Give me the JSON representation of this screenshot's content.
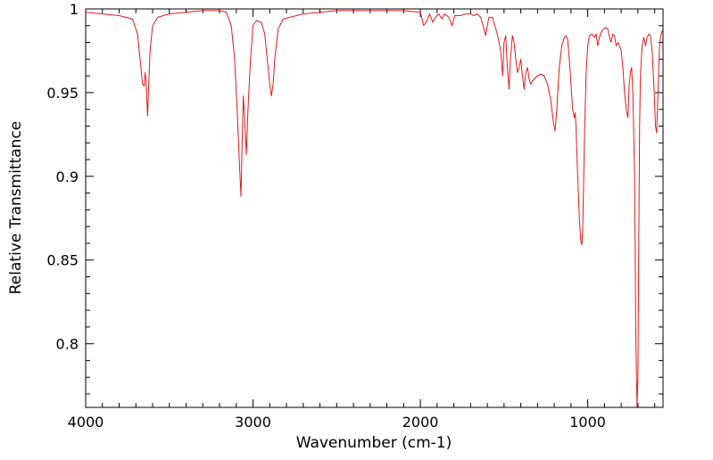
{
  "chart_data": {
    "type": "line",
    "title": "",
    "xlabel": "Wavenumber (cm-1)",
    "ylabel": "Relative Transmittance",
    "xlim": [
      4000,
      550
    ],
    "ylim": [
      0.762,
      1.0
    ],
    "x_reversed": true,
    "grid": false,
    "legend": "none",
    "xticks": [
      4000,
      3000,
      2000,
      1000
    ],
    "xtick_labels": [
      "4000",
      "3000",
      "2000",
      "1000"
    ],
    "yticks": [
      0.8,
      0.85,
      0.9,
      0.95,
      1.0
    ],
    "ytick_labels": [
      "0.8",
      "0.85",
      "0.9",
      "0.95",
      "1"
    ],
    "series": [
      {
        "color": "#e41a1c",
        "points": [
          [
            4000,
            0.998
          ],
          [
            3900,
            0.997
          ],
          [
            3800,
            0.996
          ],
          [
            3720,
            0.994
          ],
          [
            3690,
            0.985
          ],
          [
            3675,
            0.97
          ],
          [
            3660,
            0.955
          ],
          [
            3650,
            0.954
          ],
          [
            3645,
            0.962
          ],
          [
            3640,
            0.958
          ],
          [
            3630,
            0.936
          ],
          [
            3625,
            0.95
          ],
          [
            3615,
            0.975
          ],
          [
            3600,
            0.99
          ],
          [
            3570,
            0.995
          ],
          [
            3500,
            0.997
          ],
          [
            3400,
            0.998
          ],
          [
            3300,
            0.999
          ],
          [
            3200,
            0.999
          ],
          [
            3160,
            0.998
          ],
          [
            3130,
            0.99
          ],
          [
            3110,
            0.97
          ],
          [
            3095,
            0.94
          ],
          [
            3080,
            0.905
          ],
          [
            3072,
            0.888
          ],
          [
            3065,
            0.92
          ],
          [
            3058,
            0.948
          ],
          [
            3050,
            0.935
          ],
          [
            3040,
            0.913
          ],
          [
            3030,
            0.94
          ],
          [
            3015,
            0.97
          ],
          [
            3000,
            0.99
          ],
          [
            2980,
            0.993
          ],
          [
            2950,
            0.992
          ],
          [
            2930,
            0.985
          ],
          [
            2915,
            0.97
          ],
          [
            2900,
            0.955
          ],
          [
            2890,
            0.948
          ],
          [
            2880,
            0.955
          ],
          [
            2870,
            0.97
          ],
          [
            2850,
            0.988
          ],
          [
            2820,
            0.994
          ],
          [
            2700,
            0.997
          ],
          [
            2600,
            0.998
          ],
          [
            2500,
            0.999
          ],
          [
            2400,
            0.999
          ],
          [
            2300,
            0.999
          ],
          [
            2200,
            0.999
          ],
          [
            2100,
            0.999
          ],
          [
            2000,
            0.998
          ],
          [
            1980,
            0.99
          ],
          [
            1960,
            0.993
          ],
          [
            1945,
            0.997
          ],
          [
            1925,
            0.992
          ],
          [
            1910,
            0.995
          ],
          [
            1890,
            0.997
          ],
          [
            1870,
            0.994
          ],
          [
            1855,
            0.997
          ],
          [
            1830,
            0.995
          ],
          [
            1810,
            0.99
          ],
          [
            1795,
            0.996
          ],
          [
            1760,
            0.996
          ],
          [
            1730,
            0.997
          ],
          [
            1700,
            0.997
          ],
          [
            1680,
            0.996
          ],
          [
            1660,
            0.997
          ],
          [
            1640,
            0.995
          ],
          [
            1625,
            0.99
          ],
          [
            1610,
            0.984
          ],
          [
            1600,
            0.99
          ],
          [
            1590,
            0.995
          ],
          [
            1570,
            0.995
          ],
          [
            1555,
            0.99
          ],
          [
            1540,
            0.985
          ],
          [
            1520,
            0.975
          ],
          [
            1508,
            0.96
          ],
          [
            1500,
            0.98
          ],
          [
            1490,
            0.984
          ],
          [
            1480,
            0.965
          ],
          [
            1470,
            0.952
          ],
          [
            1462,
            0.97
          ],
          [
            1450,
            0.984
          ],
          [
            1440,
            0.98
          ],
          [
            1430,
            0.97
          ],
          [
            1420,
            0.962
          ],
          [
            1410,
            0.965
          ],
          [
            1400,
            0.97
          ],
          [
            1390,
            0.96
          ],
          [
            1380,
            0.952
          ],
          [
            1370,
            0.962
          ],
          [
            1360,
            0.965
          ],
          [
            1350,
            0.958
          ],
          [
            1340,
            0.955
          ],
          [
            1330,
            0.957
          ],
          [
            1320,
            0.958
          ],
          [
            1300,
            0.96
          ],
          [
            1280,
            0.961
          ],
          [
            1260,
            0.96
          ],
          [
            1240,
            0.955
          ],
          [
            1220,
            0.945
          ],
          [
            1205,
            0.932
          ],
          [
            1195,
            0.927
          ],
          [
            1185,
            0.94
          ],
          [
            1170,
            0.965
          ],
          [
            1155,
            0.978
          ],
          [
            1140,
            0.983
          ],
          [
            1130,
            0.984
          ],
          [
            1120,
            0.982
          ],
          [
            1110,
            0.97
          ],
          [
            1100,
            0.955
          ],
          [
            1090,
            0.94
          ],
          [
            1080,
            0.935
          ],
          [
            1075,
            0.938
          ],
          [
            1070,
            0.93
          ],
          [
            1060,
            0.9
          ],
          [
            1050,
            0.875
          ],
          [
            1042,
            0.862
          ],
          [
            1035,
            0.859
          ],
          [
            1030,
            0.868
          ],
          [
            1020,
            0.92
          ],
          [
            1010,
            0.96
          ],
          [
            1000,
            0.978
          ],
          [
            990,
            0.984
          ],
          [
            975,
            0.985
          ],
          [
            960,
            0.983
          ],
          [
            950,
            0.985
          ],
          [
            940,
            0.978
          ],
          [
            930,
            0.983
          ],
          [
            920,
            0.986
          ],
          [
            905,
            0.988
          ],
          [
            895,
            0.989
          ],
          [
            880,
            0.988
          ],
          [
            870,
            0.983
          ],
          [
            860,
            0.98
          ],
          [
            850,
            0.985
          ],
          [
            840,
            0.984
          ],
          [
            830,
            0.978
          ],
          [
            820,
            0.98
          ],
          [
            810,
            0.978
          ],
          [
            800,
            0.975
          ],
          [
            790,
            0.965
          ],
          [
            780,
            0.95
          ],
          [
            770,
            0.94
          ],
          [
            760,
            0.935
          ],
          [
            752,
            0.955
          ],
          [
            745,
            0.962
          ],
          [
            738,
            0.965
          ],
          [
            730,
            0.95
          ],
          [
            720,
            0.9
          ],
          [
            712,
            0.8
          ],
          [
            705,
            0.762
          ],
          [
            700,
            0.78
          ],
          [
            695,
            0.86
          ],
          [
            690,
            0.93
          ],
          [
            685,
            0.96
          ],
          [
            675,
            0.978
          ],
          [
            665,
            0.983
          ],
          [
            655,
            0.978
          ],
          [
            645,
            0.983
          ],
          [
            635,
            0.985
          ],
          [
            625,
            0.984
          ],
          [
            615,
            0.975
          ],
          [
            605,
            0.955
          ],
          [
            595,
            0.93
          ],
          [
            588,
            0.926
          ],
          [
            580,
            0.95
          ],
          [
            572,
            0.975
          ],
          [
            565,
            0.983
          ],
          [
            555,
            0.987
          ]
        ]
      }
    ]
  }
}
